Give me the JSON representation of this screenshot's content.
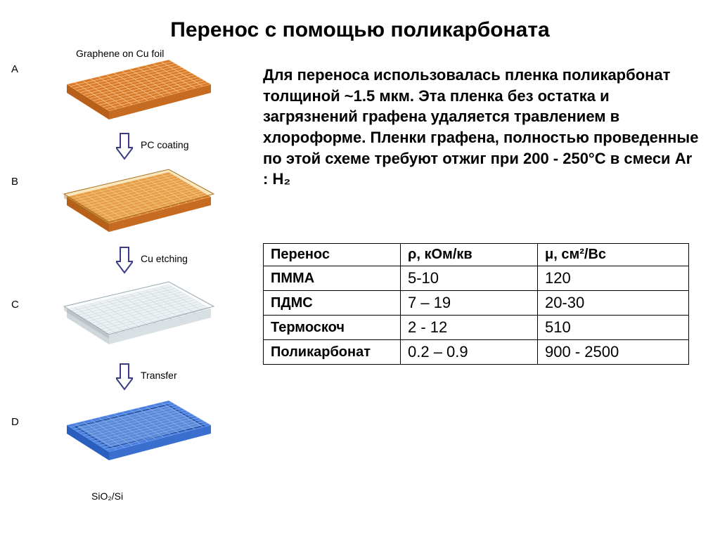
{
  "title": "Перенос с помощью поликарбоната",
  "description": "Для переноса использовалась пленка поликарбонат  толщиной ~1.5 мкм. Эта пленка без остатка и загрязнений графена удаляется травлением в хлороформе. Пленки графена, полностью проведенные по этой схеме требуют отжиг при 200 - 250°С в смеси Ar : H₂",
  "diagram": {
    "steps": [
      {
        "letter": "A",
        "label": "Graphene on Cu foil",
        "substrate_label": null,
        "top_color": "#d97b2e",
        "side_color_l": "#b85f1a",
        "side_color_r": "#c66b22",
        "grid_color": "#f0a65a",
        "lattice_color": "#ffcc88",
        "has_overlay": false,
        "has_lattice": true
      },
      {
        "letter": "B",
        "label": "PC coating",
        "top_color": "#d97b2e",
        "side_color_l": "#b85f1a",
        "side_color_r": "#c66b22",
        "grid_color": "#f0a65a",
        "lattice_color": "#ffcc88",
        "has_overlay": true,
        "overlay_color": "#f5c971",
        "overlay_edge": "#a87020",
        "has_lattice": true
      },
      {
        "letter": "C",
        "label": "Cu etching",
        "top_color": "#e8edf0",
        "side_color_l": "#cfd7db",
        "side_color_r": "#d8e0e4",
        "grid_color": "#ffffff",
        "lattice_color": "#b8c4ca",
        "has_overlay": true,
        "overlay_color": "#f2f6f8",
        "overlay_edge": "#9aa8b0",
        "has_lattice": true
      },
      {
        "letter": "D",
        "label": "Transfer",
        "substrate_label": "SiO₂/Si",
        "top_color": "#4a7fe0",
        "side_color_l": "#2a5fc0",
        "side_color_r": "#3a6fd0",
        "grid_color": "#6a9aea",
        "inner_color": "#5a89d8",
        "lattice_color": "#8ab0f0",
        "has_overlay": false,
        "has_border_line": true,
        "has_lattice": true
      }
    ],
    "arrows": [
      {
        "label": "PC coating"
      },
      {
        "label": "Cu etching"
      },
      {
        "label": "Transfer"
      }
    ],
    "arrow_fill": "#ffffff",
    "arrow_stroke": "#3a3a8a"
  },
  "table": {
    "headers": [
      "Перенос",
      "ρ, кОм/кв",
      "μ, см²/Вс"
    ],
    "rows": [
      [
        "ПММА",
        "5-10",
        "120"
      ],
      [
        "ПДМС",
        "7 – 19",
        "20-30"
      ],
      [
        "Термоскоч",
        "2 - 12",
        "510"
      ],
      [
        "Поликарбонат",
        "0.2 – 0.9",
        "900 - 2500"
      ]
    ]
  }
}
